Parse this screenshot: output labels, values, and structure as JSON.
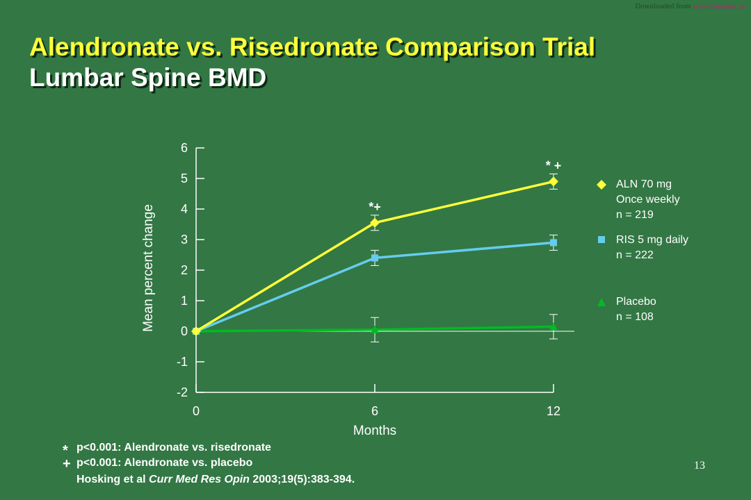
{
  "header": {
    "download_prefix": "Downloaded from",
    "download_link": "www.fosamax.ae"
  },
  "title": {
    "line1": "Alendronate vs. Risedronate Comparison Trial",
    "line2": "Lumbar Spine BMD"
  },
  "colors": {
    "background": "#337744",
    "aln": "#ffff3a",
    "ris": "#66ccee",
    "placebo": "#00bb22"
  },
  "chart_data": {
    "type": "line",
    "xlabel": "Months",
    "ylabel": "Mean percent change",
    "x": [
      0,
      6,
      12
    ],
    "xticks": [
      "0",
      "6",
      "12"
    ],
    "ylim": [
      -2,
      6
    ],
    "yticks": [
      "6",
      "5",
      "4",
      "3",
      "2",
      "1",
      "0",
      "-1",
      "-2"
    ],
    "grid": false,
    "series": [
      {
        "name": "ALN 70 mg Once weekly n = 219",
        "values": [
          0,
          3.55,
          4.9
        ],
        "err": [
          0,
          0.25,
          0.25
        ],
        "marker": "diamond",
        "color": "#ffff3a"
      },
      {
        "name": "RIS 5 mg daily n = 222",
        "values": [
          0,
          2.4,
          2.9
        ],
        "err": [
          0,
          0.25,
          0.25
        ],
        "marker": "square",
        "color": "#66ccee"
      },
      {
        "name": "Placebo n = 108",
        "values": [
          0,
          0.05,
          0.15
        ],
        "err": [
          0,
          0.4,
          0.4
        ],
        "marker": "triangle",
        "color": "#00bb22"
      }
    ],
    "annotations": [
      {
        "x": 6,
        "y": 3.55,
        "text": "*+"
      },
      {
        "x": 12,
        "y": 4.9,
        "text": "* +"
      }
    ]
  },
  "legend": [
    {
      "marker": "diamond",
      "color": "#ffff3a",
      "lines": [
        "ALN 70 mg",
        "Once weekly",
        "n = 219"
      ]
    },
    {
      "marker": "square",
      "color": "#66ccee",
      "lines": [
        "RIS 5 mg daily",
        "n = 222"
      ]
    },
    {
      "marker": "triangle",
      "color": "#00bb22",
      "lines": [
        "Placebo",
        "n = 108"
      ]
    }
  ],
  "footnotes": {
    "star_symbol": "*",
    "star_text": "p<0.001: Alendronate vs. risedronate",
    "plus_symbol": "+",
    "plus_text": "p<0.001: Alendronate vs. placebo",
    "citation_authors": "Hosking et al ",
    "citation_journal": "Curr Med Res Opin",
    "citation_rest": " 2003;19(5):383-394."
  },
  "page_number": "13"
}
